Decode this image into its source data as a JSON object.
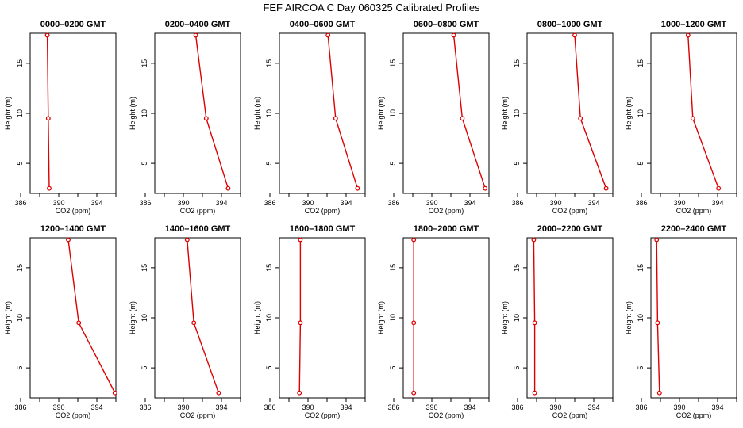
{
  "figure": {
    "title": "FEF AIRCOA C  Day 060325  Calibrated Profiles"
  },
  "style": {
    "series_color": "#dd0000",
    "axis_color": "#000000"
  },
  "chart_data": [
    {
      "type": "line",
      "title": "0000–0200 GMT",
      "xlabel": "CO2 (ppm)",
      "ylabel": "Height (m)",
      "xlim": [
        387,
        396
      ],
      "ylim": [
        2,
        18
      ],
      "xticks": [
        386,
        390,
        394
      ],
      "yticks": [
        5,
        10,
        15
      ],
      "series": [
        {
          "x": [
            388.8,
            388.9,
            389.0
          ],
          "y": [
            17.8,
            9.5,
            2.5
          ]
        }
      ]
    },
    {
      "type": "line",
      "title": "0200–0400 GMT",
      "xlabel": "CO2 (ppm)",
      "ylabel": "Height (m)",
      "xlim": [
        387,
        396
      ],
      "ylim": [
        2,
        18
      ],
      "xticks": [
        386,
        390,
        394
      ],
      "yticks": [
        5,
        10,
        15
      ],
      "series": [
        {
          "x": [
            391.3,
            392.4,
            394.7
          ],
          "y": [
            17.8,
            9.5,
            2.5
          ]
        }
      ]
    },
    {
      "type": "line",
      "title": "0400–0600 GMT",
      "xlabel": "CO2 (ppm)",
      "ylabel": "Height (m)",
      "xlim": [
        387,
        396
      ],
      "ylim": [
        2,
        18
      ],
      "xticks": [
        386,
        390,
        394
      ],
      "yticks": [
        5,
        10,
        15
      ],
      "series": [
        {
          "x": [
            392.1,
            392.9,
            395.2
          ],
          "y": [
            17.8,
            9.5,
            2.5
          ]
        }
      ]
    },
    {
      "type": "line",
      "title": "0600–0800 GMT",
      "xlabel": "CO2 (ppm)",
      "ylabel": "Height (m)",
      "xlim": [
        387,
        396
      ],
      "ylim": [
        2,
        18
      ],
      "xticks": [
        386,
        390,
        394
      ],
      "yticks": [
        5,
        10,
        15
      ],
      "series": [
        {
          "x": [
            392.3,
            393.2,
            395.6
          ],
          "y": [
            17.8,
            9.5,
            2.5
          ]
        }
      ]
    },
    {
      "type": "line",
      "title": "0800–1000 GMT",
      "xlabel": "CO2 (ppm)",
      "ylabel": "Height (m)",
      "xlim": [
        387,
        396
      ],
      "ylim": [
        2,
        18
      ],
      "xticks": [
        386,
        390,
        394
      ],
      "yticks": [
        5,
        10,
        15
      ],
      "series": [
        {
          "x": [
            392.0,
            392.6,
            395.3
          ],
          "y": [
            17.8,
            9.5,
            2.5
          ]
        }
      ]
    },
    {
      "type": "line",
      "title": "1000–1200 GMT",
      "xlabel": "CO2 (ppm)",
      "ylabel": "Height (m)",
      "xlim": [
        387,
        396
      ],
      "ylim": [
        2,
        18
      ],
      "xticks": [
        386,
        390,
        394
      ],
      "yticks": [
        5,
        10,
        15
      ],
      "series": [
        {
          "x": [
            390.9,
            391.4,
            394.1
          ],
          "y": [
            17.8,
            9.5,
            2.5
          ]
        }
      ]
    },
    {
      "type": "line",
      "title": "1200–1400 GMT",
      "xlabel": "CO2 (ppm)",
      "ylabel": "Height (m)",
      "xlim": [
        387,
        396
      ],
      "ylim": [
        2,
        18
      ],
      "xticks": [
        386,
        390,
        394
      ],
      "yticks": [
        5,
        10,
        15
      ],
      "series": [
        {
          "x": [
            391.0,
            392.1,
            395.9
          ],
          "y": [
            17.8,
            9.5,
            2.5
          ]
        }
      ]
    },
    {
      "type": "line",
      "title": "1400–1600 GMT",
      "xlabel": "CO2 (ppm)",
      "ylabel": "Height (m)",
      "xlim": [
        387,
        396
      ],
      "ylim": [
        2,
        18
      ],
      "xticks": [
        386,
        390,
        394
      ],
      "yticks": [
        5,
        10,
        15
      ],
      "series": [
        {
          "x": [
            390.4,
            391.1,
            393.7
          ],
          "y": [
            17.8,
            9.5,
            2.5
          ]
        }
      ]
    },
    {
      "type": "line",
      "title": "1600–1800 GMT",
      "xlabel": "CO2 (ppm)",
      "ylabel": "Height (m)",
      "xlim": [
        387,
        396
      ],
      "ylim": [
        2,
        18
      ],
      "xticks": [
        386,
        390,
        394
      ],
      "yticks": [
        5,
        10,
        15
      ],
      "series": [
        {
          "x": [
            389.2,
            389.2,
            389.1
          ],
          "y": [
            17.8,
            9.5,
            2.5
          ]
        }
      ]
    },
    {
      "type": "line",
      "title": "1800–2000 GMT",
      "xlabel": "CO2 (ppm)",
      "ylabel": "Height (m)",
      "xlim": [
        387,
        396
      ],
      "ylim": [
        2,
        18
      ],
      "xticks": [
        386,
        390,
        394
      ],
      "yticks": [
        5,
        10,
        15
      ],
      "series": [
        {
          "x": [
            388.1,
            388.1,
            388.1
          ],
          "y": [
            17.8,
            9.5,
            2.5
          ]
        }
      ]
    },
    {
      "type": "line",
      "title": "2000–2200 GMT",
      "xlabel": "CO2 (ppm)",
      "ylabel": "Height (m)",
      "xlim": [
        387,
        396
      ],
      "ylim": [
        2,
        18
      ],
      "xticks": [
        386,
        390,
        394
      ],
      "yticks": [
        5,
        10,
        15
      ],
      "series": [
        {
          "x": [
            387.7,
            387.8,
            387.8
          ],
          "y": [
            17.8,
            9.5,
            2.5
          ]
        }
      ]
    },
    {
      "type": "line",
      "title": "2200–2400 GMT",
      "xlabel": "CO2 (ppm)",
      "ylabel": "Height (m)",
      "xlim": [
        387,
        396
      ],
      "ylim": [
        2,
        18
      ],
      "xticks": [
        386,
        390,
        394
      ],
      "yticks": [
        5,
        10,
        15
      ],
      "series": [
        {
          "x": [
            387.6,
            387.7,
            387.9
          ],
          "y": [
            17.8,
            9.5,
            2.5
          ]
        }
      ]
    }
  ]
}
